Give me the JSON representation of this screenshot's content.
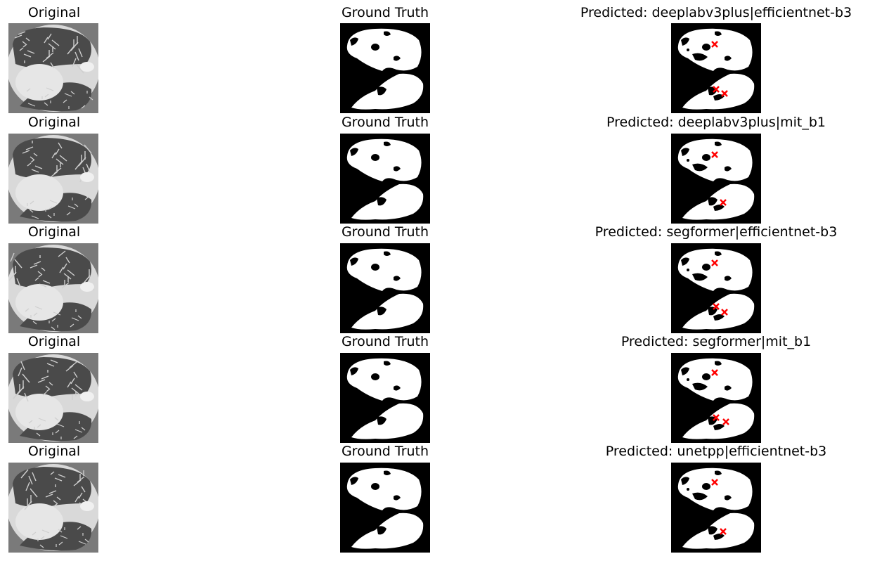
{
  "rows": [
    {
      "original_title": "Original",
      "gt_title": "Ground Truth",
      "pred_title": "Predicted: deeplabv3plus|efficientnet-b3"
    },
    {
      "original_title": "Original",
      "gt_title": "Ground Truth",
      "pred_title": "Predicted: deeplabv3plus|mit_b1"
    },
    {
      "original_title": "Original",
      "gt_title": "Ground Truth",
      "pred_title": "Predicted: segformer|efficientnet-b3"
    },
    {
      "original_title": "Original",
      "gt_title": "Ground Truth",
      "pred_title": "Predicted: segformer|mit_b1"
    },
    {
      "original_title": "Original",
      "gt_title": "Ground Truth",
      "pred_title": "Predicted: unetpp|efficientnet-b3"
    }
  ],
  "colors": {
    "mask_fg": "#ffffff",
    "mask_bg": "#000000",
    "marker": "#ff0000",
    "ct_bg": "#d9d9d9"
  },
  "icons": {
    "error_marker": "x-marker-icon"
  }
}
